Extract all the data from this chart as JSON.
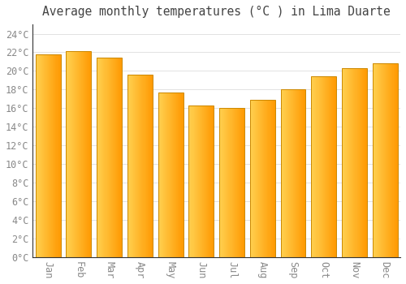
{
  "title": "Average monthly temperatures (°C ) in Lima Duarte",
  "months": [
    "Jan",
    "Feb",
    "Mar",
    "Apr",
    "May",
    "Jun",
    "Jul",
    "Aug",
    "Sep",
    "Oct",
    "Nov",
    "Dec"
  ],
  "values": [
    21.8,
    22.1,
    21.4,
    19.6,
    17.7,
    16.3,
    16.0,
    16.9,
    18.0,
    19.4,
    20.3,
    20.8
  ],
  "bar_color_left": "#FFD060",
  "bar_color_right": "#FFA000",
  "bar_edge_color": "#CC8800",
  "background_color": "#FFFFFF",
  "grid_color": "#DDDDDD",
  "tick_label_color": "#888888",
  "title_color": "#444444",
  "spine_color": "#333333",
  "ylim": [
    0,
    25
  ],
  "ytick_step": 2,
  "title_fontsize": 10.5,
  "tick_fontsize": 8.5
}
